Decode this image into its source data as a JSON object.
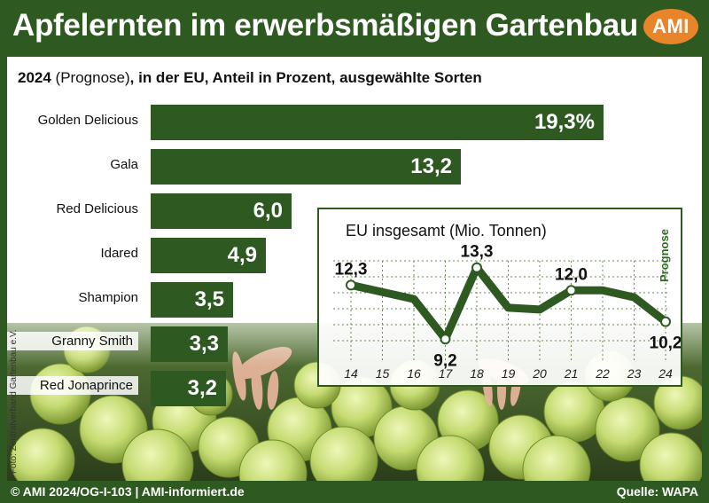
{
  "header": {
    "title": "Apfelernten im erwerbsmäßigen Gartenbau",
    "logo_text": "AMI"
  },
  "subtitle": {
    "year": "2024",
    "rest_plain": " (Prognose)",
    "rest_bold": ", in der EU, Anteil in Prozent, ausgewählte Sorten"
  },
  "colors": {
    "primary_green": "#2e5a22",
    "logo_orange": "#e8842a",
    "prognose_green": "#2e6a22"
  },
  "chart_data": [
    {
      "type": "bar",
      "orientation": "horizontal",
      "categories": [
        "Golden Delicious",
        "Gala",
        "Red Delicious",
        "Idared",
        "Shampion",
        "Granny Smith",
        "Red Jonaprince"
      ],
      "values": [
        19.3,
        13.2,
        6.0,
        4.9,
        3.5,
        3.3,
        3.2
      ],
      "value_labels": [
        "19,3%",
        "13,2",
        "6,0",
        "4,9",
        "3,5",
        "3,3",
        "3,2"
      ],
      "xlim": [
        0,
        20
      ],
      "grid": false
    },
    {
      "type": "line",
      "title": "EU insgesamt (Mio. Tonnen)",
      "x": [
        "14",
        "15",
        "16",
        "17",
        "18",
        "19",
        "20",
        "21",
        "22",
        "23",
        "24"
      ],
      "values": [
        12.3,
        11.9,
        11.5,
        9.2,
        13.3,
        11.0,
        10.9,
        12.0,
        12.0,
        11.6,
        10.2
      ],
      "labeled": [
        {
          "index": 0,
          "label": "12,3"
        },
        {
          "index": 3,
          "label": "9,2"
        },
        {
          "index": 4,
          "label": "13,3"
        },
        {
          "index": 7,
          "label": "12,0"
        },
        {
          "index": 10,
          "label": "10,2"
        }
      ],
      "annotation": "Prognose",
      "ylim": [
        8.5,
        14
      ],
      "grid": true
    }
  ],
  "footer": {
    "left": "© AMI 2024/OG-I-103 | AMI-informiert.de",
    "right": "Quelle: WAPA"
  },
  "photo_credit": "Foto: Zentralverband Gartenbau e.V."
}
